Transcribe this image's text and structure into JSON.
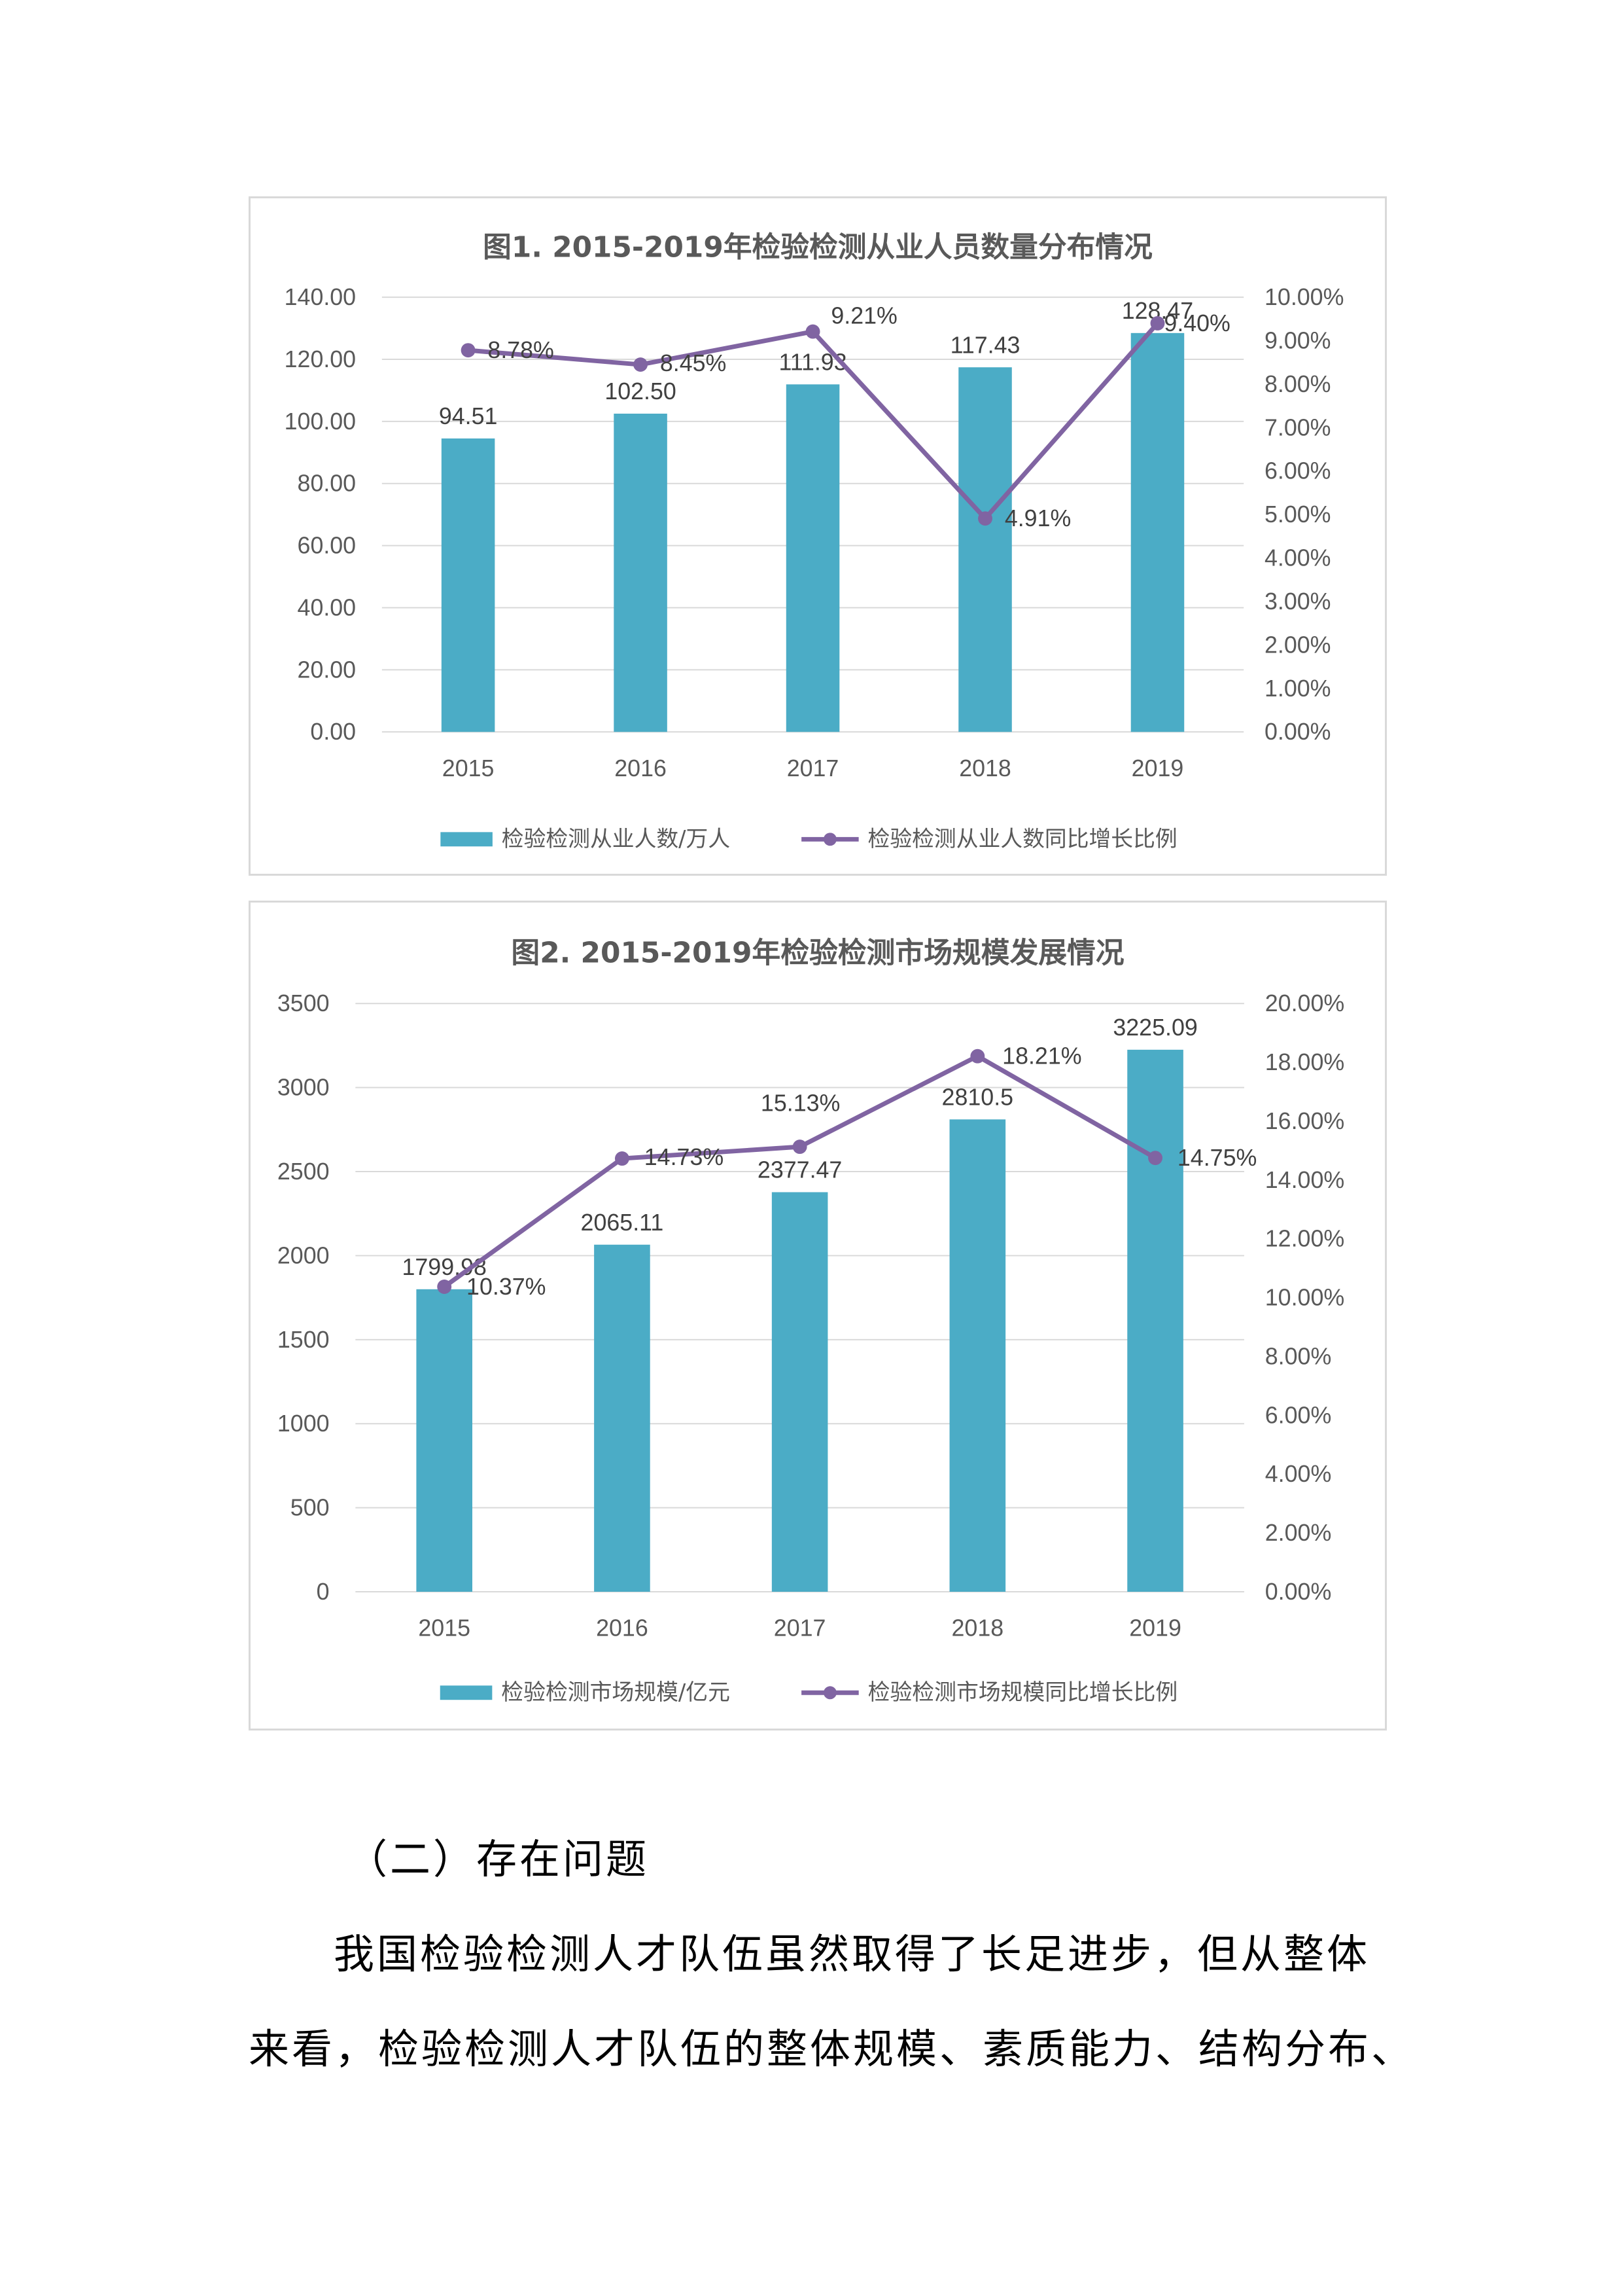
{
  "chart_data": [
    {
      "type": "bar",
      "title": "图1. 2015-2019年检验检测从业人员数量分布情况",
      "categories": [
        "2015",
        "2016",
        "2017",
        "2018",
        "2019"
      ],
      "series": [
        {
          "name": "检验检测从业人数/万人",
          "kind": "bar",
          "axis": "left",
          "values": [
            94.51,
            102.5,
            111.93,
            117.43,
            128.47
          ],
          "labels": [
            "94.51",
            "102.50",
            "111.93",
            "117.43",
            "128.47"
          ]
        },
        {
          "name": "检验检测从业人数同比增长比例",
          "kind": "line",
          "axis": "right",
          "values": [
            8.78,
            8.45,
            9.21,
            4.91,
            9.4
          ],
          "labels": [
            "8.78%",
            "8.45%",
            "9.21%",
            "4.91%",
            "9.40%"
          ]
        }
      ],
      "y_left": {
        "range": [
          0,
          140
        ],
        "ticks": [
          "0.00",
          "20.00",
          "40.00",
          "60.00",
          "80.00",
          "100.00",
          "120.00",
          "140.00"
        ]
      },
      "y_right": {
        "range": [
          0,
          10
        ],
        "ticks": [
          "0.00%",
          "1.00%",
          "2.00%",
          "3.00%",
          "4.00%",
          "5.00%",
          "6.00%",
          "7.00%",
          "8.00%",
          "9.00%",
          "10.00%"
        ]
      },
      "grid": true,
      "legend": "bottom",
      "colors": {
        "bar": "#4bacc6",
        "line": "#8064a2",
        "grid": "#d9d9d9"
      }
    },
    {
      "type": "bar",
      "title": "图2. 2015-2019年检验检测市场规模发展情况",
      "categories": [
        "2015",
        "2016",
        "2017",
        "2018",
        "2019"
      ],
      "series": [
        {
          "name": "检验检测市场规模/亿元",
          "kind": "bar",
          "axis": "left",
          "values": [
            1799.98,
            2065.11,
            2377.47,
            2810.5,
            3225.09
          ],
          "labels": [
            "1799.98",
            "2065.11",
            "2377.47",
            "2810.5",
            "3225.09"
          ]
        },
        {
          "name": "检验检测市场规模同比增长比例",
          "kind": "line",
          "axis": "right",
          "values": [
            10.37,
            14.73,
            15.13,
            18.21,
            14.75
          ],
          "labels": [
            "10.37%",
            "14.73%",
            "15.13%",
            "18.21%",
            "14.75%"
          ]
        }
      ],
      "y_left": {
        "range": [
          0,
          3500
        ],
        "ticks": [
          "0",
          "500",
          "1000",
          "1500",
          "2000",
          "2500",
          "3000",
          "3500"
        ]
      },
      "y_right": {
        "range": [
          0,
          20
        ],
        "ticks": [
          "0.00%",
          "2.00%",
          "4.00%",
          "6.00%",
          "8.00%",
          "10.00%",
          "12.00%",
          "14.00%",
          "16.00%",
          "18.00%",
          "20.00%"
        ]
      },
      "grid": true,
      "legend": "bottom",
      "colors": {
        "bar": "#4bacc6",
        "line": "#8064a2",
        "grid": "#d9d9d9"
      }
    }
  ],
  "text": {
    "heading": "（二）存在问题",
    "para_line1": "我国检验检测人才队伍虽然取得了长足进步，但从整体",
    "para_line2": "来看，检验检测人才队伍的整体规模、素质能力、结构分布、"
  }
}
